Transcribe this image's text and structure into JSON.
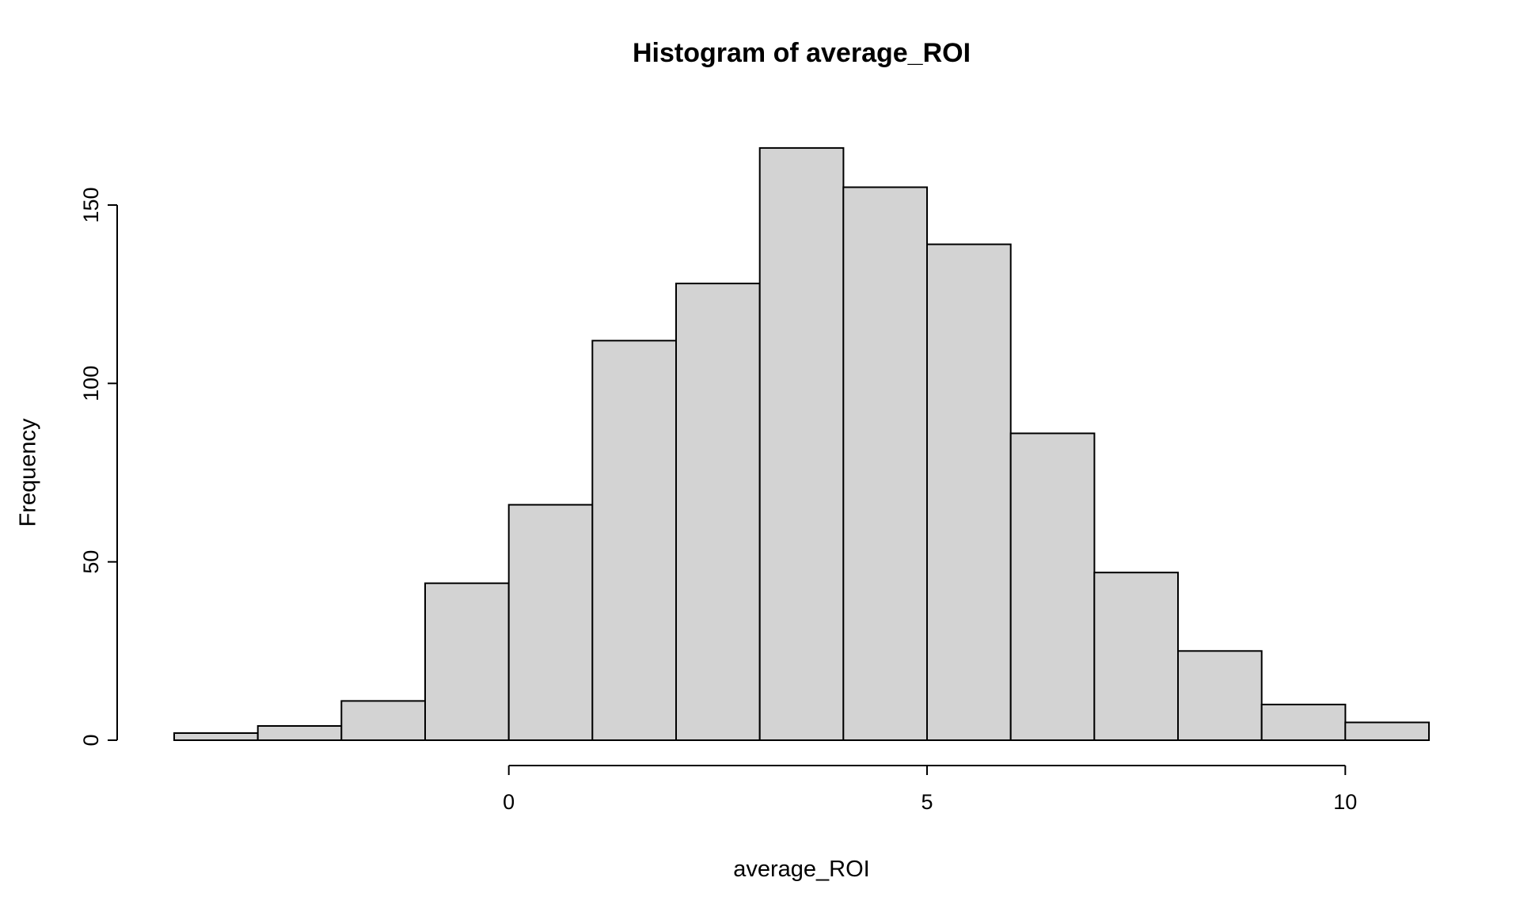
{
  "chart_data": {
    "type": "bar",
    "subtype": "histogram",
    "title": "Histogram of average_ROI",
    "xlabel": "average_ROI",
    "ylabel": "Frequency",
    "bin_edges": [
      -4,
      -3,
      -2,
      -1,
      0,
      1,
      2,
      3,
      4,
      5,
      6,
      7,
      8,
      9,
      10,
      11
    ],
    "values": [
      2,
      4,
      11,
      44,
      66,
      112,
      128,
      166,
      155,
      139,
      86,
      47,
      25,
      10,
      5
    ],
    "x_ticks": [
      0,
      5,
      10
    ],
    "y_ticks": [
      0,
      50,
      100,
      150
    ],
    "xlim": [
      -4,
      11
    ],
    "ylim": [
      0,
      166
    ],
    "grid": "off",
    "legend": "none",
    "bar_fill": "#d3d3d3",
    "bar_stroke": "#000000",
    "axis_color": "#000000",
    "background": "#ffffff"
  }
}
